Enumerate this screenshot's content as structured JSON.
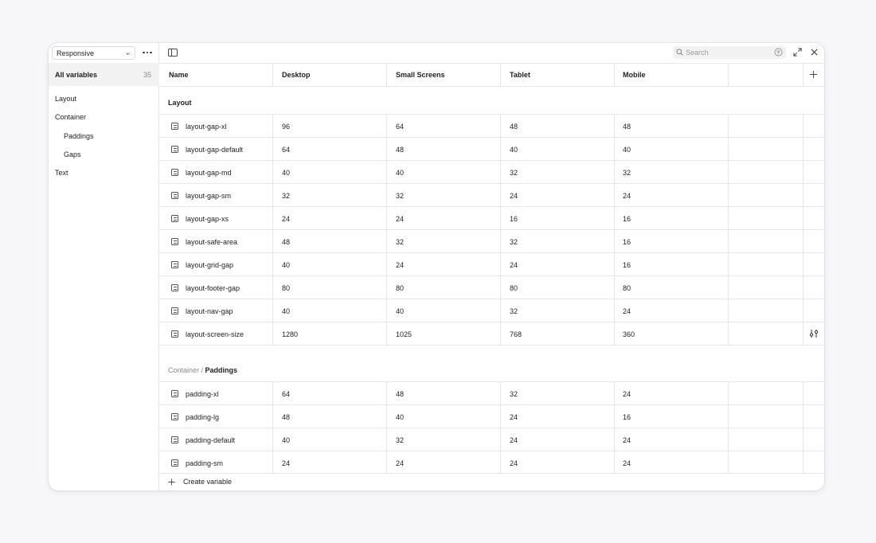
{
  "sidebar": {
    "mode": "Responsive",
    "all_label": "All variables",
    "all_count": "35",
    "items": [
      "Layout",
      "Container",
      "Paddings",
      "Gaps",
      "Text"
    ]
  },
  "search": {
    "placeholder": "Search"
  },
  "table": {
    "columns": [
      "Name",
      "Desktop",
      "Small Screens",
      "Tablet",
      "Mobile"
    ],
    "groups": [
      {
        "prefix": "",
        "title": "Layout",
        "rows": [
          {
            "name": "layout-gap-xl",
            "values": [
              "96",
              "64",
              "48",
              "48"
            ]
          },
          {
            "name": "layout-gap-default",
            "values": [
              "64",
              "48",
              "40",
              "40"
            ]
          },
          {
            "name": "layout-gap-md",
            "values": [
              "40",
              "40",
              "32",
              "32"
            ]
          },
          {
            "name": "layout-gap-sm",
            "values": [
              "32",
              "32",
              "24",
              "24"
            ]
          },
          {
            "name": "layout-gap-xs",
            "values": [
              "24",
              "24",
              "16",
              "16"
            ]
          },
          {
            "name": "layout-safe-area",
            "values": [
              "48",
              "32",
              "32",
              "16"
            ]
          },
          {
            "name": "layout-grid-gap",
            "values": [
              "40",
              "24",
              "24",
              "16"
            ]
          },
          {
            "name": "layout-footer-gap",
            "values": [
              "80",
              "80",
              "80",
              "80"
            ]
          },
          {
            "name": "layout-nav-gap",
            "values": [
              "40",
              "40",
              "32",
              "24"
            ]
          },
          {
            "name": "layout-screen-size",
            "values": [
              "1280",
              "1025",
              "768",
              "360"
            ]
          }
        ]
      },
      {
        "prefix": "Container / ",
        "title": "Paddings",
        "rows": [
          {
            "name": "padding-xl",
            "values": [
              "64",
              "48",
              "32",
              "24"
            ]
          },
          {
            "name": "padding-lg",
            "values": [
              "48",
              "40",
              "24",
              "16"
            ]
          },
          {
            "name": "padding-default",
            "values": [
              "40",
              "32",
              "24",
              "24"
            ]
          },
          {
            "name": "padding-sm",
            "values": [
              "24",
              "24",
              "24",
              "24"
            ]
          }
        ]
      }
    ]
  },
  "footer": {
    "create_label": "Create variable"
  }
}
